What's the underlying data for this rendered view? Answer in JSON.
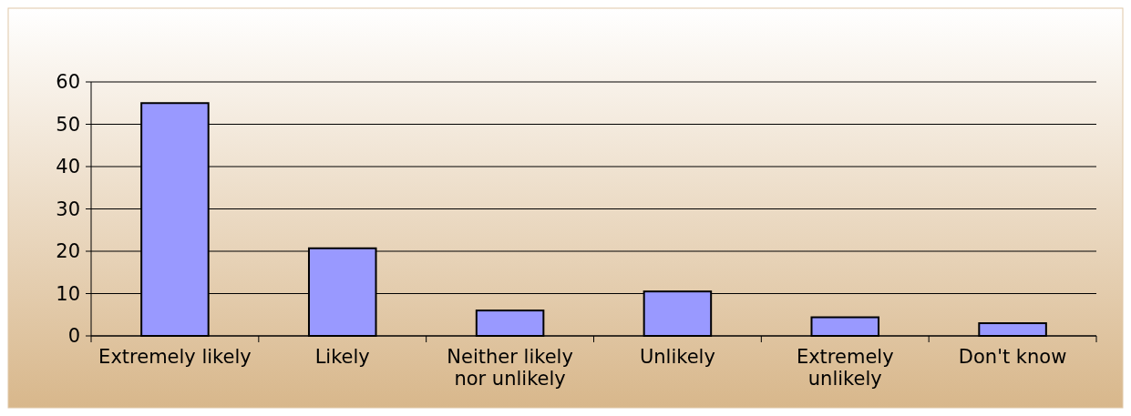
{
  "chart_data": {
    "type": "bar",
    "categories": [
      "Extremely likely",
      "Likely",
      "Neither likely nor unlikely",
      "Unlikely",
      "Extremely unlikely",
      "Don't know"
    ],
    "values": [
      55,
      20.7,
      6,
      10.5,
      4.4,
      3
    ],
    "color": "#9999ff",
    "ylim": [
      0,
      60
    ],
    "yticks": [
      0,
      10,
      20,
      30,
      40,
      50,
      60
    ],
    "grid": "y"
  }
}
